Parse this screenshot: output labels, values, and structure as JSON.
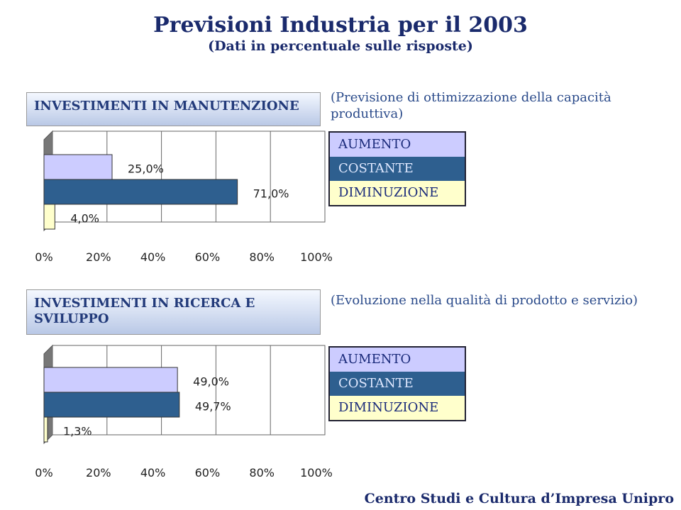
{
  "title": "Previsioni Industria per il 2003",
  "subtitle": "(Dati in percentuale sulle risposte)",
  "footer": "Centro Studi e Cultura d’Impresa Unipro",
  "chart_data": [
    {
      "type": "bar",
      "orientation": "horizontal",
      "title": "INVESTIMENTI IN MANUTENZIONE",
      "note": "(Previsione di ottimizzazione della capacità produttiva)",
      "categories": [
        "AUMENTO",
        "COSTANTE",
        "DIMINUZIONE"
      ],
      "colors": [
        "#ccccff",
        "#2e5f8f",
        "#ffffcc"
      ],
      "values": [
        25.0,
        71.0,
        4.0
      ],
      "value_labels": [
        "25,0%",
        "71,0%",
        "4,0%"
      ],
      "xlim": [
        0,
        100
      ],
      "xticks": [
        {
          "value": 0,
          "label": "0%"
        },
        {
          "value": 20,
          "label": "20%"
        },
        {
          "value": 40,
          "label": "40%"
        },
        {
          "value": 60,
          "label": "60%"
        },
        {
          "value": 80,
          "label": "80%"
        },
        {
          "value": 100,
          "label": "100%"
        }
      ],
      "grid": true
    },
    {
      "type": "bar",
      "orientation": "horizontal",
      "title": "INVESTIMENTI IN RICERCA E SVILUPPO",
      "note": "(Evoluzione nella qualità di prodotto e servizio)",
      "categories": [
        "AUMENTO",
        "COSTANTE",
        "DIMINUZIONE"
      ],
      "colors": [
        "#ccccff",
        "#2e5f8f",
        "#ffffcc"
      ],
      "values": [
        49.0,
        49.7,
        1.3
      ],
      "value_labels": [
        "49,0%",
        "49,7%",
        "1,3%"
      ],
      "xlim": [
        0,
        100
      ],
      "xticks": [
        {
          "value": 0,
          "label": "0%"
        },
        {
          "value": 20,
          "label": "20%"
        },
        {
          "value": 40,
          "label": "40%"
        },
        {
          "value": 60,
          "label": "60%"
        },
        {
          "value": 80,
          "label": "80%"
        },
        {
          "value": 100,
          "label": "100%"
        }
      ],
      "grid": true
    }
  ]
}
